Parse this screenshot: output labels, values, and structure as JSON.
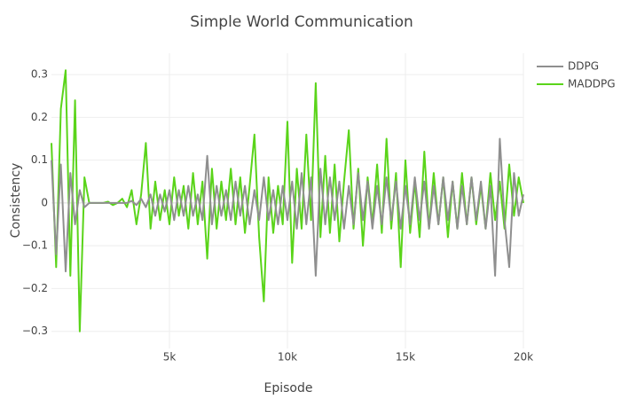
{
  "chart_data": {
    "type": "line",
    "title": "Simple World Communication",
    "x_label": "Episode",
    "y_label": "Consistency",
    "xlim": [
      0,
      20000
    ],
    "ylim": [
      -0.34,
      0.35
    ],
    "xticks": [
      {
        "value": 5000,
        "label": "5k"
      },
      {
        "value": 10000,
        "label": "10k"
      },
      {
        "value": 15000,
        "label": "15k"
      },
      {
        "value": 20000,
        "label": "20k"
      }
    ],
    "yticks": [
      {
        "value": -0.3,
        "label": "−0.3"
      },
      {
        "value": -0.2,
        "label": "−0.2"
      },
      {
        "value": -0.1,
        "label": "−0.1"
      },
      0,
      0.1,
      0.2,
      0.3
    ],
    "grid": true,
    "legend": "top-right",
    "x": [
      0,
      200,
      400,
      600,
      800,
      1000,
      1200,
      1400,
      1600,
      1800,
      2000,
      2200,
      2400,
      2600,
      2800,
      3000,
      3200,
      3400,
      3600,
      3800,
      4000,
      4200,
      4400,
      4600,
      4800,
      5000,
      5200,
      5400,
      5600,
      5800,
      6000,
      6200,
      6400,
      6600,
      6800,
      7000,
      7200,
      7400,
      7600,
      7800,
      8000,
      8200,
      8400,
      8600,
      8800,
      9000,
      9200,
      9400,
      9600,
      9800,
      10000,
      10200,
      10400,
      10600,
      10800,
      11000,
      11200,
      11400,
      11600,
      11800,
      12000,
      12200,
      12400,
      12600,
      12800,
      13000,
      13200,
      13400,
      13600,
      13800,
      14000,
      14200,
      14400,
      14600,
      14800,
      15000,
      15200,
      15400,
      15600,
      15800,
      16000,
      16200,
      16400,
      16600,
      16800,
      17000,
      17200,
      17400,
      17600,
      17800,
      18000,
      18200,
      18400,
      18600,
      18800,
      19000,
      19200,
      19400,
      19600,
      19800,
      20000
    ],
    "series": [
      {
        "name": "DDPG",
        "color": "#8f8f8f",
        "values": [
          0.1,
          -0.12,
          0.09,
          -0.16,
          0.07,
          -0.05,
          0.03,
          -0.01,
          0,
          0,
          0,
          0,
          0,
          0,
          0,
          0,
          0,
          0.005,
          -0.005,
          0.01,
          -0.01,
          0.02,
          -0.03,
          0.02,
          -0.02,
          0.03,
          -0.04,
          0.03,
          -0.03,
          0.04,
          -0.03,
          0.02,
          -0.04,
          0.11,
          -0.05,
          0.04,
          -0.03,
          0.03,
          -0.04,
          0.05,
          -0.03,
          0.04,
          -0.05,
          0.03,
          -0.04,
          0.06,
          -0.04,
          0.03,
          -0.05,
          0.04,
          -0.04,
          0.05,
          -0.06,
          0.07,
          -0.05,
          0.06,
          -0.17,
          0.08,
          -0.05,
          0.06,
          -0.04,
          0.05,
          -0.06,
          0.04,
          -0.05,
          0.07,
          -0.04,
          0.05,
          -0.06,
          0.04,
          -0.05,
          0.06,
          -0.04,
          0.05,
          -0.06,
          0.04,
          -0.05,
          0.06,
          -0.04,
          0.05,
          -0.06,
          0.04,
          -0.05,
          0.06,
          -0.04,
          0.05,
          -0.06,
          0.04,
          -0.05,
          0.06,
          -0.04,
          0.05,
          -0.06,
          0.04,
          -0.17,
          0.15,
          -0.04,
          -0.15,
          0.07,
          -0.03,
          0.02
        ]
      },
      {
        "name": "MADDPG",
        "color": "#5ad41a",
        "values": [
          0.14,
          -0.15,
          0.22,
          0.31,
          -0.17,
          0.24,
          -0.3,
          0.06,
          0,
          0,
          0,
          0,
          0.003,
          -0.005,
          0,
          0.01,
          -0.01,
          0.03,
          -0.05,
          0.02,
          0.14,
          -0.06,
          0.05,
          -0.04,
          0.03,
          -0.05,
          0.06,
          -0.03,
          0.04,
          -0.06,
          0.07,
          -0.05,
          0.05,
          -0.13,
          0.08,
          -0.06,
          0.05,
          -0.04,
          0.08,
          -0.05,
          0.06,
          -0.07,
          0.04,
          0.16,
          -0.08,
          -0.23,
          0.06,
          -0.07,
          0.04,
          -0.05,
          0.19,
          -0.14,
          0.08,
          -0.06,
          0.16,
          -0.04,
          0.28,
          -0.08,
          0.11,
          -0.07,
          0.09,
          -0.09,
          0.05,
          0.17,
          -0.06,
          0.08,
          -0.1,
          0.06,
          -0.05,
          0.09,
          -0.07,
          0.15,
          -0.06,
          0.07,
          -0.15,
          0.1,
          -0.07,
          0.05,
          -0.08,
          0.12,
          -0.06,
          0.07,
          -0.05,
          0.06,
          -0.08,
          0.05,
          -0.06,
          0.07,
          -0.05,
          0.06,
          -0.05,
          0.04,
          -0.06,
          0.07,
          -0.04,
          0.05,
          -0.06,
          0.09,
          -0.03,
          0.06,
          0.0
        ]
      }
    ]
  }
}
